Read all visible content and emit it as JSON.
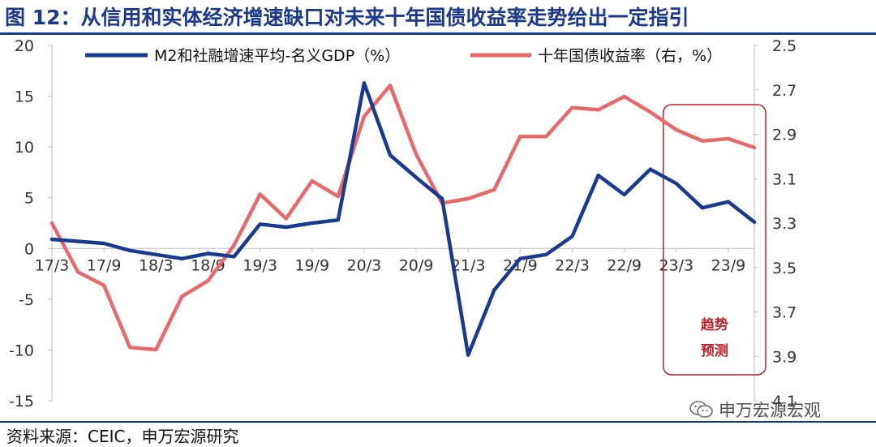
{
  "header": {
    "title": "图 12：从信用和实体经济增速缺口对未来十年国债收益率走势给出一定指引"
  },
  "footer": {
    "source": "资料来源：CEIC，申万宏源研究",
    "watermark": "申万宏源宏观",
    "watermark_icon": "wechat-icon"
  },
  "colors": {
    "title": "#1c3a8c",
    "series_left": "#1a3a8f",
    "series_right": "#e8696b",
    "forecast_box": "#c0202a"
  },
  "chart_data": {
    "type": "line",
    "x_tick_labels": [
      "17/3",
      "17/9",
      "18/3",
      "18/9",
      "19/3",
      "19/9",
      "20/3",
      "20/9",
      "21/3",
      "21/9",
      "22/3",
      "22/9",
      "23/3",
      "23/9"
    ],
    "x": [
      "17/3",
      "17/6",
      "17/9",
      "17/12",
      "18/3",
      "18/6",
      "18/9",
      "18/12",
      "19/3",
      "19/6",
      "19/9",
      "19/12",
      "20/3",
      "20/6",
      "20/9",
      "20/12",
      "21/3",
      "21/6",
      "21/9",
      "21/12",
      "22/3",
      "22/6",
      "22/9",
      "22/12",
      "23/3",
      "23/6",
      "23/9",
      "23/12"
    ],
    "series": [
      {
        "name": "M2和社融增速平均-名义GDP（%）",
        "axis": "left",
        "values": [
          0.9,
          0.7,
          0.5,
          -0.2,
          -0.6,
          -1.0,
          -0.5,
          -0.8,
          2.4,
          2.1,
          2.5,
          2.8,
          16.3,
          9.2,
          7.0,
          4.9,
          -10.5,
          -4.1,
          -1.0,
          -0.6,
          1.2,
          7.2,
          5.3,
          7.8,
          6.4,
          4.0,
          4.6,
          2.6
        ]
      },
      {
        "name": "十年国债收益率（右，%）",
        "axis": "right",
        "inverted": true,
        "values": [
          3.3,
          3.52,
          3.58,
          3.86,
          3.87,
          3.63,
          3.56,
          3.4,
          3.17,
          3.28,
          3.11,
          3.18,
          2.82,
          2.68,
          2.99,
          3.21,
          3.19,
          3.15,
          2.91,
          2.91,
          2.78,
          2.79,
          2.73,
          2.8,
          2.88,
          2.93,
          2.92,
          2.96
        ]
      }
    ],
    "y_left": {
      "range": [
        -15,
        20
      ],
      "ticks": [
        "20",
        "15",
        "10",
        "5",
        "0",
        "-5",
        "-10",
        "-15"
      ]
    },
    "y_right": {
      "range": [
        2.5,
        4.1
      ],
      "inverted": true,
      "ticks": [
        "2.5",
        "2.7",
        "2.9",
        "3.1",
        "3.3",
        "3.5",
        "3.7",
        "3.9",
        "4.1"
      ]
    },
    "grid": false,
    "legend_position": "top",
    "forecast_box": {
      "label_line1": "趋势",
      "label_line2": "预测",
      "from": "23/3",
      "to": "23/12"
    }
  }
}
